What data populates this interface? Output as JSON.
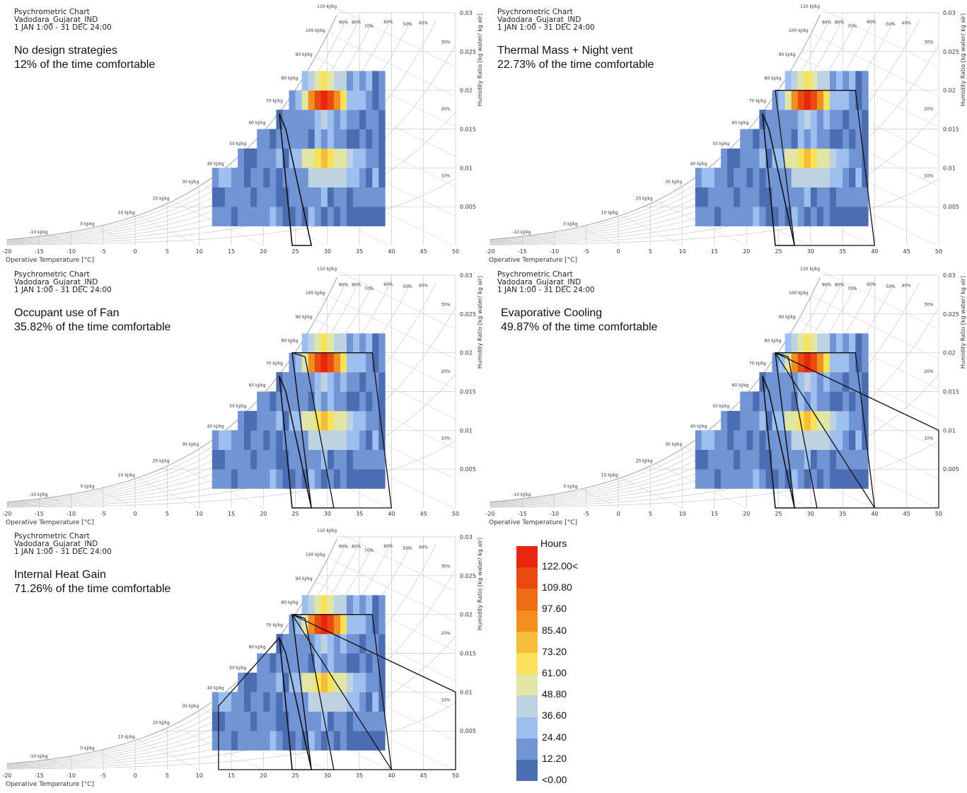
{
  "header": {
    "chart_name": "Psychrometric Chart",
    "location": "Vadodara_Gujarat_IND",
    "period": "1 JAN 1:00 - 31 DEC 24:00"
  },
  "axes": {
    "xlabel": "Operative Temperature [°C]",
    "ylabel": "Humidity Ratio [kg water/ kg air]",
    "x_ticks": [
      "-20",
      "-15",
      "-10",
      "-5",
      "0",
      "5",
      "10",
      "15",
      "20",
      "25",
      "30",
      "35",
      "40",
      "45",
      "50"
    ],
    "y_ticks": [
      "0.005",
      "0.01",
      "0.015",
      "0.02",
      "0.025",
      "0.03"
    ],
    "enthalpy_labels": [
      "-10 kJ/kg",
      "0 kJ/kg",
      "10 kJ/kg",
      "20 kJ/kg",
      "30 kJ/kg",
      "40 kJ/kg",
      "50 kJ/kg",
      "60 kJ/kg",
      "70 kJ/kg",
      "80 kJ/kg",
      "90 kJ/kg",
      "100 kJ/kg",
      "110 kJ/kg"
    ],
    "rh_labels": [
      "10%",
      "20%",
      "30%",
      "40%",
      "50%",
      "60%",
      "70%",
      "80%",
      "90%"
    ]
  },
  "legend": {
    "title": "Hours",
    "labels": [
      "122.00<",
      "109.80",
      "97.60",
      "85.40",
      "73.20",
      "61.00",
      "48.80",
      "36.60",
      "24.40",
      "12.20",
      "<0.00"
    ],
    "colors": [
      "#e8250f",
      "#e94a10",
      "#ec6d14",
      "#f08f1e",
      "#f5bd38",
      "#f9e25a",
      "#e1e6a4",
      "#bfd2e2",
      "#9cbff0",
      "#7294d4",
      "#4c6db2"
    ]
  },
  "chart_data": [
    {
      "type": "heatmap",
      "name": "No design strategies",
      "comfort_percent": "12%",
      "strategy_label": "No design strategies",
      "comfort_text": "12% of the time comfortable",
      "xlim": [
        -20,
        50
      ],
      "ylim": [
        0,
        0.03
      ],
      "zones": [
        "comfort"
      ]
    },
    {
      "type": "heatmap",
      "name": "Thermal Mass + Night vent",
      "comfort_percent": "22.73%",
      "strategy_label": "Thermal Mass + Night vent",
      "comfort_text": "22.73% of the time comfortable",
      "xlim": [
        -20,
        50
      ],
      "ylim": [
        0,
        0.03
      ],
      "zones": [
        "comfort",
        "thermal_mass"
      ]
    },
    {
      "type": "heatmap",
      "name": "Occupant use of Fan",
      "comfort_percent": "35.82%",
      "strategy_label": "Occupant use of Fan",
      "comfort_text": "35.82% of the time comfortable",
      "xlim": [
        -20,
        50
      ],
      "ylim": [
        0,
        0.03
      ],
      "zones": [
        "comfort",
        "thermal_mass",
        "fan"
      ]
    },
    {
      "type": "heatmap",
      "name": "Evaporative Cooling",
      "comfort_percent": "49.87%",
      "strategy_label": "Evaporative Cooling",
      "comfort_text": "49.87% of the time comfortable",
      "xlim": [
        -20,
        50
      ],
      "ylim": [
        0,
        0.03
      ],
      "zones": [
        "comfort",
        "thermal_mass",
        "fan",
        "evaporative"
      ]
    },
    {
      "type": "heatmap",
      "name": "Internal Heat Gain",
      "comfort_percent": "71.26%",
      "strategy_label": "Internal Heat Gain",
      "comfort_text": "71.26% of the time comfortable",
      "xlim": [
        -20,
        50
      ],
      "ylim": [
        0,
        0.03
      ],
      "zones": [
        "comfort",
        "thermal_mass",
        "fan",
        "evaporative",
        "internal_gain"
      ]
    }
  ]
}
